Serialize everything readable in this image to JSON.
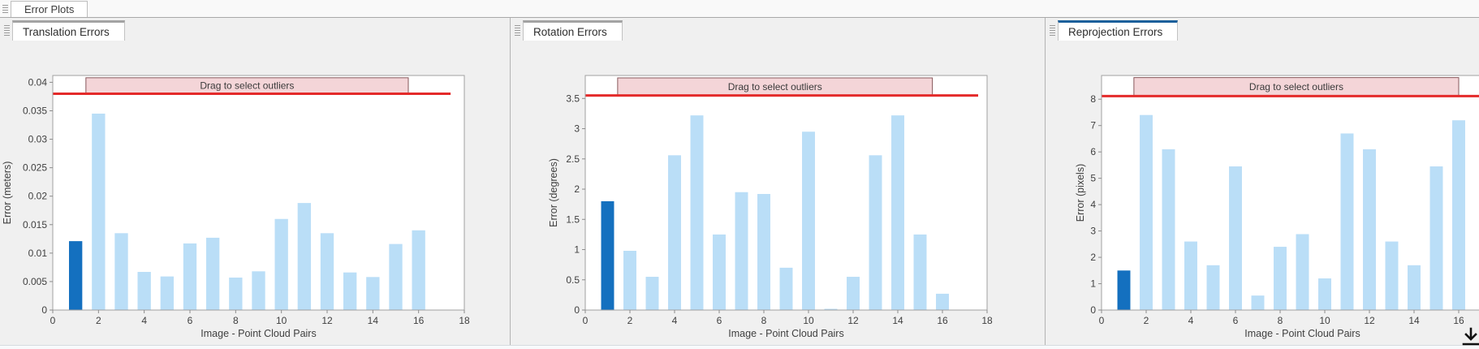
{
  "window": {
    "document_tab": "Error Plots"
  },
  "colors": {
    "bar": "#badef7",
    "bar_selected": "#1470bf",
    "threshold_line": "#e42a2a",
    "band_fill": "#f4d5d8",
    "band_border": "#86585b",
    "selected_tab_accent": "#1a5f9b",
    "unselected_tab_accent": "#a3a3a3",
    "plot_background": "#ffffff",
    "panel_background": "#f0f0f0"
  },
  "icons": {
    "export": "download-arrow-icon",
    "tab_grip": "drag-grip-icon"
  },
  "panels": [
    {
      "tab_label": "Translation Errors",
      "selected": false
    },
    {
      "tab_label": "Rotation Errors",
      "selected": false
    },
    {
      "tab_label": "Reprojection Errors",
      "selected": true
    }
  ],
  "chart_data": [
    {
      "type": "bar",
      "title": "Translation Errors",
      "xlabel": "Image - Point Cloud Pairs",
      "ylabel": "Error (meters)",
      "x": [
        1,
        2,
        3,
        4,
        5,
        6,
        7,
        8,
        9,
        10,
        11,
        12,
        13,
        14,
        15,
        16
      ],
      "values": [
        0.0121,
        0.0345,
        0.0135,
        0.0067,
        0.0059,
        0.0117,
        0.0127,
        0.0057,
        0.0068,
        0.016,
        0.0188,
        0.0135,
        0.0066,
        0.0058,
        0.0116,
        0.014
      ],
      "highlighted_bar_x": 1,
      "xlim": [
        0,
        18
      ],
      "ylim": [
        0,
        0.0412
      ],
      "xticks": [
        0,
        2,
        4,
        6,
        8,
        10,
        12,
        14,
        16,
        18
      ],
      "xtick_labels": [
        "0",
        "2",
        "4",
        "6",
        "8",
        "10",
        "12",
        "14",
        "16",
        "18"
      ],
      "yticks": [
        0,
        0.005,
        0.01,
        0.015,
        0.02,
        0.025,
        0.03,
        0.035,
        0.04
      ],
      "ytick_labels": [
        "0",
        "0.005",
        "0.01",
        "0.015",
        "0.02",
        "0.025",
        "0.03",
        "0.035",
        "0.04"
      ],
      "threshold": 0.038,
      "threshold_extent_x": 17.4,
      "band": {
        "label": "Drag to select outliers",
        "x0": 1.45,
        "x1": 15.55,
        "y0": 0.038,
        "y1": 0.0408
      },
      "legend": null,
      "grid": false
    },
    {
      "type": "bar",
      "title": "Rotation Errors",
      "xlabel": "Image - Point Cloud Pairs",
      "ylabel": "Error (degrees)",
      "x": [
        1,
        2,
        3,
        4,
        5,
        6,
        7,
        8,
        9,
        10,
        11,
        12,
        13,
        14,
        15,
        16
      ],
      "values": [
        1.8,
        0.98,
        0.55,
        2.56,
        3.22,
        1.25,
        1.95,
        1.92,
        0.7,
        2.95,
        0.02,
        0.55,
        2.56,
        3.22,
        1.25,
        0.27
      ],
      "highlighted_bar_x": 1,
      "xlim": [
        0,
        18
      ],
      "ylim": [
        0,
        3.88
      ],
      "xticks": [
        0,
        2,
        4,
        6,
        8,
        10,
        12,
        14,
        16,
        18
      ],
      "xtick_labels": [
        "0",
        "2",
        "4",
        "6",
        "8",
        "10",
        "12",
        "14",
        "16",
        "18"
      ],
      "yticks": [
        0,
        0.5,
        1,
        1.5,
        2,
        2.5,
        3,
        3.5
      ],
      "ytick_labels": [
        "0",
        "0.5",
        "1",
        "1.5",
        "2",
        "2.5",
        "3",
        "3.5"
      ],
      "threshold": 3.55,
      "threshold_extent_x": 17.6,
      "band": {
        "label": "Drag to select outliers",
        "x0": 1.45,
        "x1": 15.55,
        "y0": 3.55,
        "y1": 3.84
      },
      "legend": null,
      "grid": false
    },
    {
      "type": "bar",
      "title": "Reprojection Errors",
      "xlabel": "Image - Point Cloud Pairs",
      "ylabel": "Error (pixels)",
      "x": [
        1,
        2,
        3,
        4,
        5,
        6,
        7,
        8,
        9,
        10,
        11,
        12,
        13,
        14,
        15,
        16
      ],
      "values": [
        1.5,
        7.4,
        6.1,
        2.6,
        1.7,
        5.45,
        0.55,
        2.4,
        2.88,
        1.2,
        6.7,
        6.1,
        2.6,
        1.7,
        5.45,
        7.2
      ],
      "highlighted_bar_x": 1,
      "xlim": [
        0,
        18
      ],
      "ylim": [
        0,
        8.9
      ],
      "xticks": [
        0,
        2,
        4,
        6,
        8,
        10,
        12,
        14,
        16
      ],
      "xtick_labels": [
        "0",
        "2",
        "4",
        "6",
        "8",
        "10",
        "12",
        "14",
        "16"
      ],
      "yticks": [
        0,
        1,
        2,
        3,
        4,
        5,
        6,
        7,
        8
      ],
      "ytick_labels": [
        "0",
        "1",
        "2",
        "3",
        "4",
        "5",
        "6",
        "7",
        "8"
      ],
      "threshold": 8.12,
      "threshold_extent_x": 18,
      "band": {
        "label": "Drag to select outliers",
        "x0": 1.45,
        "x1": 16.0,
        "y0": 8.12,
        "y1": 8.82
      },
      "legend": null,
      "grid": false
    }
  ]
}
